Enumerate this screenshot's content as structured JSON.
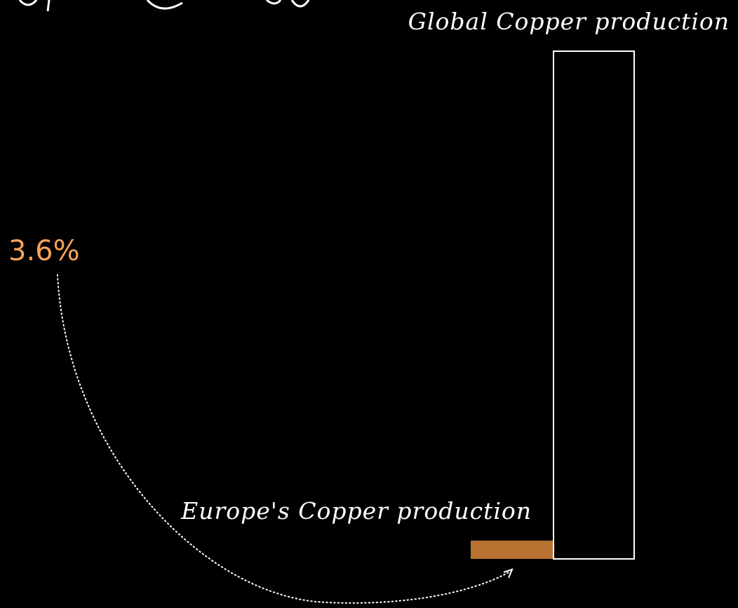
{
  "chart_data": {
    "type": "bar",
    "unit": "%",
    "categories": [
      "Europe's Copper production",
      "Global Copper production"
    ],
    "values": [
      3.6,
      100
    ],
    "annotation": "3.6%",
    "colors": {
      "background": "#000000",
      "europe_bar": "#b87333",
      "global_bar_outline": "#ffffff",
      "annotation_text": "#f5a25a",
      "arrow": "#ffffff"
    }
  }
}
